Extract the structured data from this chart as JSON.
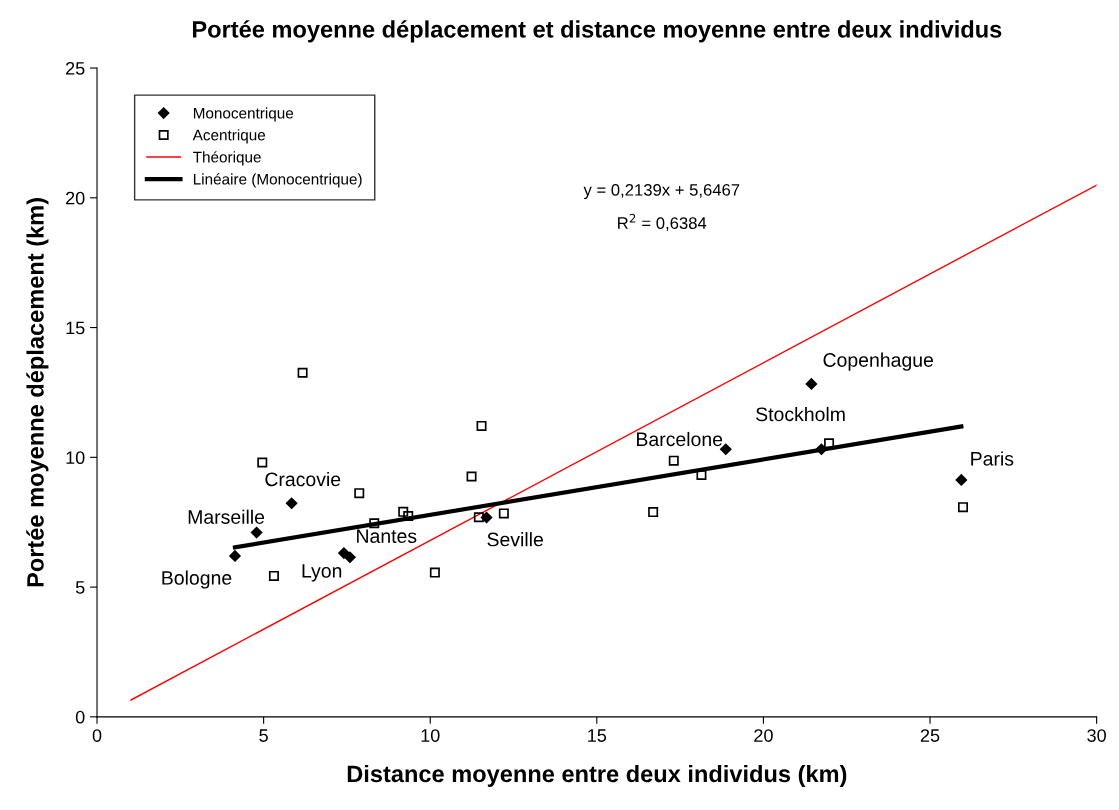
{
  "chart_data": {
    "type": "scatter",
    "title": "Portée moyenne déplacement et distance moyenne entre deux individus",
    "xlabel": "Distance moyenne entre deux individus (km)",
    "ylabel": "Portée moyenne déplacement (km)",
    "xlim": [
      0,
      30
    ],
    "xticks": [
      0,
      5,
      10,
      15,
      20,
      25,
      30
    ],
    "ylim": [
      0,
      25
    ],
    "yticks": [
      0,
      5,
      10,
      15,
      20,
      25
    ],
    "grid": false,
    "legend": "top left",
    "series": [
      {
        "name": "Monocentrique",
        "type": "scatter",
        "marker": "diamond",
        "color": "#000000",
        "x": [
          4.14,
          4.79,
          5.84,
          7.41,
          7.59,
          11.69,
          18.87,
          21.74,
          21.44,
          25.94
        ],
        "values": [
          6.2,
          7.1,
          8.23,
          6.31,
          6.15,
          7.68,
          10.31,
          10.31,
          12.83,
          9.13
        ]
      },
      {
        "name": "Acentrique",
        "type": "scatter",
        "marker": "square",
        "color": "#000000",
        "x": [
          6.17,
          11.54,
          4.96,
          11.24,
          7.87,
          9.19,
          9.34,
          8.32,
          11.46,
          12.21,
          5.31,
          10.14,
          17.31,
          18.14,
          21.97,
          16.69,
          25.99
        ],
        "values": [
          13.26,
          11.21,
          9.8,
          9.26,
          8.62,
          7.9,
          7.74,
          7.46,
          7.69,
          7.84,
          5.43,
          5.56,
          9.87,
          9.32,
          10.54,
          7.89,
          8.08
        ]
      },
      {
        "name": "Théorique",
        "type": "line",
        "marker": "none",
        "line_style": "solid",
        "color": "#ff0000",
        "x": [
          1.02,
          30
        ],
        "values": [
          0.65,
          20.49
        ]
      },
      {
        "name": "Linéaire (Monocentrique)",
        "type": "line",
        "marker": "none",
        "line_style": "solid",
        "color": "#000000",
        "x": [
          4.14,
          25.94
        ],
        "values": [
          6.53,
          11.19
        ]
      }
    ],
    "annotations": [
      {
        "text": "Bologne",
        "x": 4.14,
        "y": 6.2
      },
      {
        "text": "Marseille",
        "x": 4.79,
        "y": 7.1
      },
      {
        "text": "Cracovie",
        "x": 5.84,
        "y": 8.23
      },
      {
        "text": "Lyon",
        "x": 7.41,
        "y": 6.31
      },
      {
        "text": "Nantes",
        "x": 7.59,
        "y": 6.15
      },
      {
        "text": "Seville",
        "x": 11.69,
        "y": 7.68
      },
      {
        "text": "Barcelone",
        "x": 18.87,
        "y": 10.31
      },
      {
        "text": "Stockholm",
        "x": 21.74,
        "y": 10.31
      },
      {
        "text": "Copenhague",
        "x": 21.44,
        "y": 12.83
      },
      {
        "text": "Paris",
        "x": 25.94,
        "y": 9.13
      },
      "y = 0,2139x + 5,6467",
      "R$^{2}$ = 0,6384"
    ]
  }
}
